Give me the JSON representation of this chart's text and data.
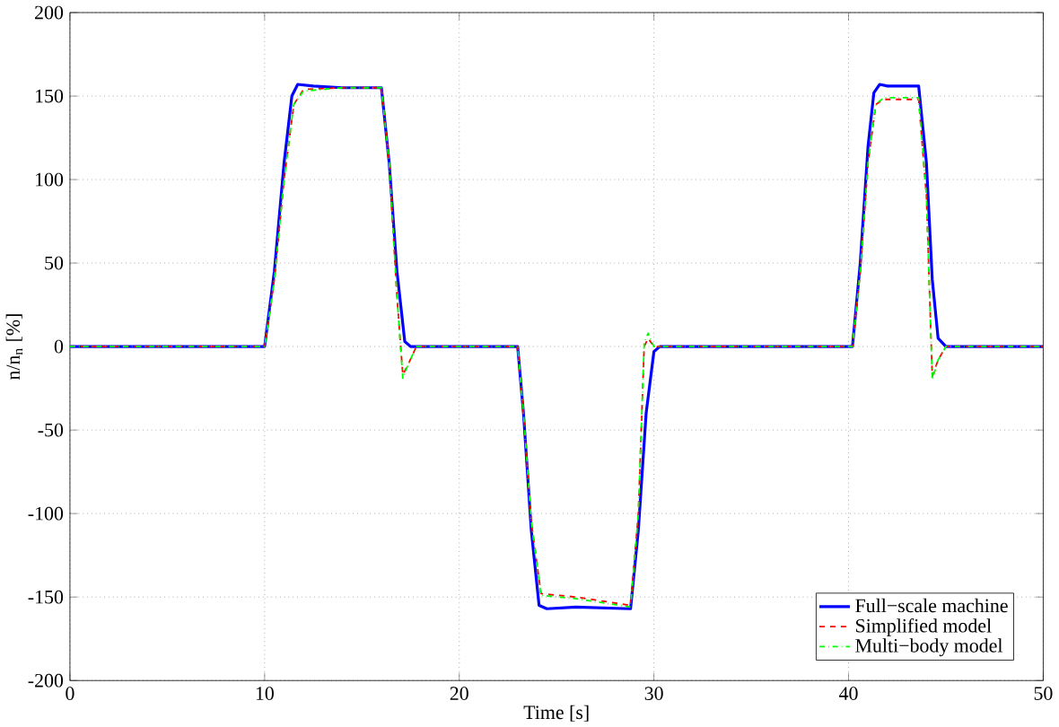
{
  "chart_data": {
    "type": "line",
    "xlabel": "Time [s]",
    "ylabel": "n/n$_{n}$ [%]",
    "xlim": [
      0,
      50
    ],
    "ylim": [
      -200,
      200
    ],
    "xticks": [
      0,
      10,
      20,
      30,
      40,
      50
    ],
    "yticks": [
      -200,
      -150,
      -100,
      -50,
      0,
      50,
      100,
      150,
      200
    ],
    "grid": true,
    "legend": "bottom right",
    "series": [
      {
        "name": "Full−scale machine",
        "color": "#0000ff",
        "line_style": "solid",
        "x": [
          0,
          10,
          10.5,
          11,
          11.4,
          11.7,
          12.5,
          14,
          16,
          16.4,
          16.8,
          17.2,
          17.5,
          23,
          23.3,
          23.7,
          24.1,
          24.5,
          26,
          28.8,
          29.2,
          29.6,
          30,
          30.3,
          40.2,
          40.6,
          41,
          41.3,
          41.6,
          42,
          43.6,
          44,
          44.3,
          44.6,
          45,
          50
        ],
        "values": [
          0,
          0,
          45,
          110,
          150,
          157,
          156,
          155,
          155,
          110,
          45,
          3,
          0,
          0,
          -40,
          -110,
          -155,
          -157,
          -156,
          -157,
          -110,
          -40,
          -3,
          0,
          0,
          50,
          120,
          152,
          157,
          156,
          156,
          110,
          40,
          5,
          0,
          0
        ]
      },
      {
        "name": "Simplified model",
        "color": "#ff0000",
        "line_style": "dashed",
        "x": [
          0,
          10,
          10.5,
          11,
          11.5,
          12,
          14,
          16,
          16.4,
          16.8,
          17.1,
          17.4,
          17.8,
          23,
          23.3,
          23.7,
          24.2,
          26,
          28.8,
          29.2,
          29.5,
          29.7,
          30,
          40.2,
          40.6,
          41,
          41.4,
          41.8,
          43.6,
          44,
          44.3,
          44.6,
          45,
          50
        ],
        "values": [
          0,
          0,
          40,
          100,
          145,
          154,
          155,
          155,
          110,
          30,
          -17,
          -10,
          0,
          0,
          -40,
          -105,
          -148,
          -150,
          -155,
          -100,
          0,
          5,
          0,
          0,
          45,
          110,
          145,
          148,
          148,
          90,
          -18,
          -8,
          0,
          0
        ]
      },
      {
        "name": "Multi−body model",
        "color": "#00ff00",
        "line_style": "dashdotted",
        "x": [
          0,
          10,
          10.5,
          11,
          11.5,
          12,
          14,
          16,
          16.4,
          16.8,
          17.1,
          17.4,
          17.8,
          23,
          23.3,
          23.7,
          24.2,
          26,
          28.8,
          29.2,
          29.5,
          29.7,
          30,
          40.2,
          40.6,
          41,
          41.4,
          41.8,
          43.6,
          44,
          44.3,
          44.6,
          45,
          50
        ],
        "values": [
          0,
          0,
          40,
          100,
          145,
          153,
          155,
          155,
          110,
          30,
          -19,
          -10,
          0,
          0,
          -40,
          -105,
          -149,
          -151,
          -156,
          -100,
          2,
          8,
          0,
          0,
          45,
          110,
          145,
          149,
          149,
          90,
          -20,
          -8,
          0,
          0
        ]
      }
    ]
  }
}
